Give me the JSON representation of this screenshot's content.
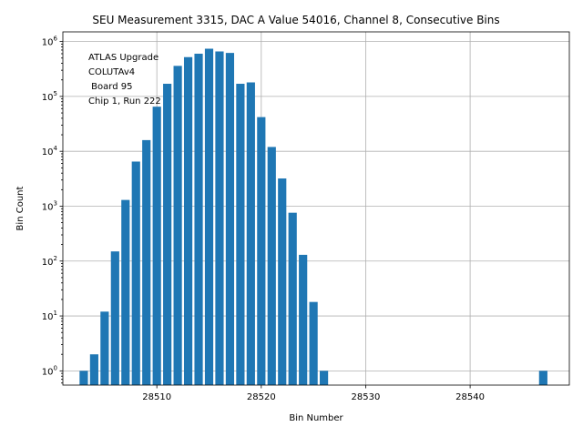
{
  "chart_data": {
    "type": "bar",
    "title": "SEU Measurement 3315, DAC A Value 54016, Channel 8, Consecutive Bins",
    "xlabel": "Bin Number",
    "ylabel": "Bin Count",
    "yscale": "log",
    "ylim": [
      0.55,
      1500000
    ],
    "xlim": [
      28501.0,
      28549.5
    ],
    "grid": true,
    "color": "#1f77b4",
    "x": [
      28503,
      28504,
      28505,
      28506,
      28507,
      28508,
      28509,
      28510,
      28511,
      28512,
      28513,
      28514,
      28515,
      28516,
      28517,
      28518,
      28519,
      28520,
      28521,
      28522,
      28523,
      28524,
      28525,
      28526,
      28547
    ],
    "values": [
      1,
      2,
      12,
      150,
      1300,
      6500,
      16000,
      65000,
      170000,
      360000,
      520000,
      600000,
      740000,
      660000,
      620000,
      170000,
      180000,
      42000,
      12000,
      3200,
      760,
      130,
      18,
      1,
      1
    ],
    "xticks": [
      28510,
      28520,
      28530,
      28540
    ],
    "yticks": [
      1,
      10,
      100,
      1000,
      10000,
      100000,
      1000000
    ],
    "ytick_labels": [
      {
        "base": "10",
        "exp": "0"
      },
      {
        "base": "10",
        "exp": "1"
      },
      {
        "base": "10",
        "exp": "2"
      },
      {
        "base": "10",
        "exp": "3"
      },
      {
        "base": "10",
        "exp": "4"
      },
      {
        "base": "10",
        "exp": "5"
      },
      {
        "base": "10",
        "exp": "6"
      }
    ],
    "annotation": [
      "ATLAS Upgrade",
      "COLUTAv4",
      " Board 95",
      "Chip 1, Run 222"
    ]
  }
}
